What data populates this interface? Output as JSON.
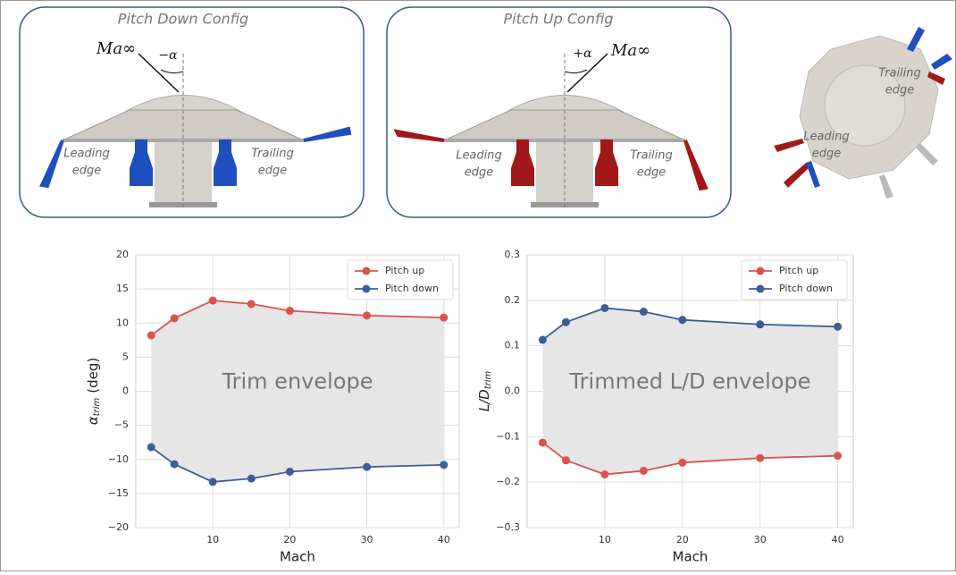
{
  "panels": [
    {
      "title": "Pitch Down Config",
      "freestream": "Ma∞",
      "angle": "−α",
      "leading": [
        "Leading",
        "edge"
      ],
      "trailing": [
        "Trailing",
        "edge"
      ]
    },
    {
      "title": "Pitch Up Config",
      "freestream": "Ma∞",
      "angle": "+α",
      "leading": [
        "Leading",
        "edge"
      ],
      "trailing": [
        "Trailing",
        "edge"
      ]
    },
    {
      "leading": [
        "Leading",
        "edge"
      ],
      "trailing": [
        "Trailing",
        "edge"
      ]
    }
  ],
  "chart_data": [
    {
      "type": "line",
      "annotation": "Trim envelope",
      "xlabel": "Mach",
      "ylabel": {
        "main": "α",
        "sub": "trim",
        "suffix": "(deg)"
      },
      "x": [
        2,
        5,
        10,
        15,
        20,
        30,
        40
      ],
      "series": [
        {
          "name": "Pitch up",
          "color": "#d9534f",
          "values": [
            8.2,
            10.7,
            13.3,
            12.8,
            11.8,
            11.1,
            10.8
          ]
        },
        {
          "name": "Pitch down",
          "color": "#3e5c97",
          "values": [
            -8.2,
            -10.7,
            -13.3,
            -12.8,
            -11.8,
            -11.1,
            -10.8
          ]
        }
      ],
      "xlim": [
        0,
        42
      ],
      "xticks": [
        10,
        20,
        30,
        40
      ],
      "ylim": [
        -20,
        20
      ],
      "yticks": [
        {
          "value": -20,
          "label": "−20"
        },
        {
          "value": -15,
          "label": "−15"
        },
        {
          "value": -10,
          "label": "−10"
        },
        {
          "value": -5,
          "label": "−5"
        },
        0,
        5,
        10,
        15,
        20
      ],
      "grid": true,
      "legend": "upper right",
      "fill_between": true,
      "fill_color": "#e6e6e6"
    },
    {
      "type": "line",
      "annotation": "Trimmed L/D envelope",
      "xlabel": "Mach",
      "ylabel": {
        "main": "L/D",
        "sub": "trim"
      },
      "x": [
        2,
        5,
        10,
        15,
        20,
        30,
        40
      ],
      "series": [
        {
          "name": "Pitch up",
          "color": "#d9534f",
          "values": [
            -0.113,
            -0.152,
            -0.183,
            -0.175,
            -0.157,
            -0.147,
            -0.142
          ]
        },
        {
          "name": "Pitch down",
          "color": "#3e5c97",
          "values": [
            0.113,
            0.152,
            0.183,
            0.175,
            0.157,
            0.147,
            0.142
          ]
        }
      ],
      "xlim": [
        0,
        42
      ],
      "xticks": [
        10,
        20,
        30,
        40
      ],
      "ylim": [
        -0.3,
        0.3
      ],
      "yticks": [
        {
          "value": -0.3,
          "label": "−0.3"
        },
        {
          "value": -0.2,
          "label": "−0.2"
        },
        {
          "value": -0.1,
          "label": "−0.1"
        },
        {
          "value": 0,
          "label": "0.0"
        },
        0.1,
        0.2,
        0.3
      ],
      "grid": true,
      "legend": "upper right",
      "fill_between": true,
      "fill_color": "#e6e6e6"
    }
  ]
}
